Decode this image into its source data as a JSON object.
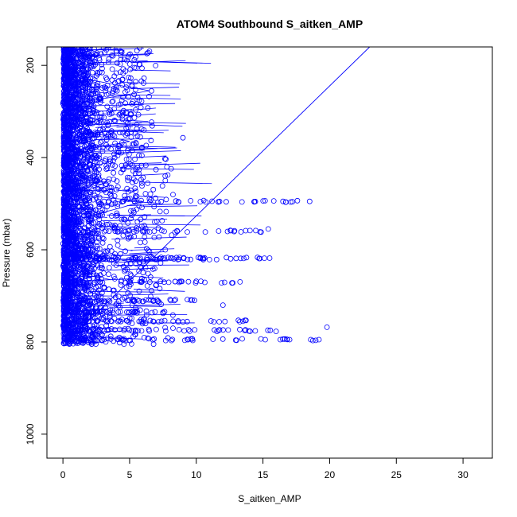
{
  "chart_data": {
    "type": "scatter",
    "title": "ATOM4 Southbound S_aitken_AMP",
    "xlabel": "S_aitken_AMP",
    "ylabel": "Pressure (mbar)",
    "xlim": [
      -1.2,
      32.2
    ],
    "ylim": [
      1052,
      160
    ],
    "y_reversed": true,
    "grid": false,
    "legend": "none",
    "marker": "open-circle",
    "connected": true,
    "color": "#0000ff",
    "x_ticks": [
      "0",
      "5",
      "10",
      "15",
      "20",
      "25",
      "30"
    ],
    "y_ticks": [
      "200",
      "400",
      "600",
      "800",
      "1000"
    ],
    "series": [
      {
        "points_approx": [
          [
            0.2,
            800
          ],
          [
            1.0,
            790
          ],
          [
            0.6,
            760
          ],
          [
            1.4,
            745
          ],
          [
            0.9,
            720
          ],
          [
            2.2,
            705
          ],
          [
            1.1,
            690
          ],
          [
            0.7,
            660
          ],
          [
            1.8,
            640
          ],
          [
            3.0,
            620
          ],
          [
            1.3,
            600
          ],
          [
            0.8,
            575
          ],
          [
            2.6,
            555
          ],
          [
            1.5,
            530
          ],
          [
            4.2,
            510
          ],
          [
            6.0,
            495
          ],
          [
            1.0,
            480
          ],
          [
            2.4,
            455
          ],
          [
            0.9,
            430
          ],
          [
            3.4,
            410
          ],
          [
            1.2,
            385
          ],
          [
            5.0,
            365
          ],
          [
            2.0,
            345
          ],
          [
            0.8,
            320
          ],
          [
            2.8,
            300
          ],
          [
            1.4,
            280
          ],
          [
            6.5,
            255
          ],
          [
            3.6,
            240
          ],
          [
            1.0,
            225
          ],
          [
            2.4,
            205
          ],
          [
            0.7,
            185
          ],
          [
            1.6,
            170
          ],
          [
            3.8,
            160
          ]
        ],
        "highlights": [
          [
            18.5,
            495
          ],
          [
            16.5,
            495
          ],
          [
            15.4,
            555
          ],
          [
            15.5,
            618
          ],
          [
            19.8,
            768
          ],
          [
            19.2,
            795
          ],
          [
            17.0,
            795
          ],
          [
            9.0,
            357
          ],
          [
            12.0,
            720
          ]
        ],
        "line_segment": [
          [
            0.3,
            800
          ],
          [
            23,
            160
          ]
        ]
      }
    ]
  }
}
